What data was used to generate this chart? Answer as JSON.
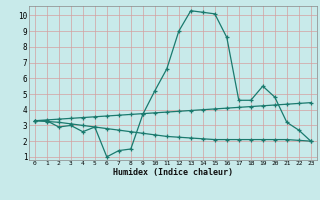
{
  "title": "",
  "xlabel": "Humidex (Indice chaleur)",
  "background_color": "#c8eaea",
  "grid_color": "#b8b8b8",
  "line_color": "#1a7a6e",
  "xlim": [
    -0.5,
    23.5
  ],
  "ylim": [
    0.8,
    10.6
  ],
  "yticks": [
    1,
    2,
    3,
    4,
    5,
    6,
    7,
    8,
    9,
    10
  ],
  "xticks": [
    0,
    1,
    2,
    3,
    4,
    5,
    6,
    7,
    8,
    9,
    10,
    11,
    12,
    13,
    14,
    15,
    16,
    17,
    18,
    19,
    20,
    21,
    22,
    23
  ],
  "curve1_x": [
    0,
    1,
    2,
    3,
    4,
    5,
    6,
    7,
    8,
    9,
    10,
    11,
    12,
    13,
    14,
    15,
    16,
    17,
    18,
    19,
    20,
    21,
    22,
    23
  ],
  "curve1_y": [
    3.3,
    3.3,
    2.9,
    3.0,
    2.6,
    2.9,
    1.0,
    1.4,
    1.5,
    3.7,
    5.2,
    6.6,
    9.0,
    10.3,
    10.2,
    10.1,
    8.6,
    4.6,
    4.6,
    5.5,
    4.8,
    3.2,
    2.7,
    2.0
  ],
  "curve2_x": [
    0,
    1,
    2,
    3,
    4,
    5,
    6,
    7,
    8,
    9,
    10,
    11,
    12,
    13,
    14,
    15,
    16,
    17,
    18,
    19,
    20,
    21,
    22,
    23
  ],
  "curve2_y": [
    3.3,
    3.35,
    3.4,
    3.45,
    3.5,
    3.55,
    3.6,
    3.65,
    3.7,
    3.75,
    3.8,
    3.85,
    3.9,
    3.95,
    4.0,
    4.05,
    4.1,
    4.15,
    4.2,
    4.25,
    4.3,
    4.35,
    4.4,
    4.45
  ],
  "curve3_x": [
    0,
    1,
    2,
    3,
    4,
    5,
    6,
    7,
    8,
    9,
    10,
    11,
    12,
    13,
    14,
    15,
    16,
    17,
    18,
    19,
    20,
    21,
    22,
    23
  ],
  "curve3_y": [
    3.3,
    3.25,
    3.2,
    3.1,
    3.0,
    2.9,
    2.8,
    2.7,
    2.6,
    2.5,
    2.4,
    2.3,
    2.25,
    2.2,
    2.15,
    2.1,
    2.1,
    2.1,
    2.1,
    2.1,
    2.1,
    2.1,
    2.05,
    2.0
  ]
}
